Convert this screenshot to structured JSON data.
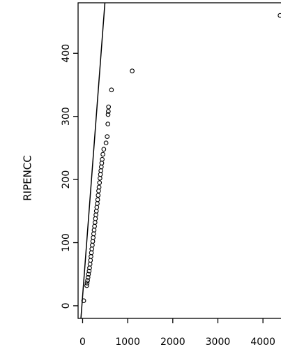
{
  "chart_data": {
    "type": "scatter",
    "title": "",
    "xlabel": "",
    "ylabel": "RIPENCC",
    "xlim": [
      -100,
      4400
    ],
    "ylim": [
      -20,
      480
    ],
    "x_ticks": [
      0,
      1000,
      2000,
      3000,
      4000
    ],
    "y_ticks": [
      0,
      100,
      200,
      300,
      400
    ],
    "x_tick_labels": [
      "0",
      "1000",
      "2000",
      "3000",
      "4000"
    ],
    "y_tick_labels": [
      "0",
      "100",
      "200",
      "300",
      "400"
    ],
    "grid": false,
    "legend": "none",
    "colors": {
      "points": "#000000",
      "line": "#000000",
      "axes": "#000000"
    },
    "reference_line": {
      "slope": 0.94,
      "intercept": 15
    },
    "points": [
      [
        25,
        8
      ],
      [
        92,
        32
      ],
      [
        100,
        36
      ],
      [
        110,
        40
      ],
      [
        120,
        45
      ],
      [
        130,
        50
      ],
      [
        145,
        55
      ],
      [
        155,
        60
      ],
      [
        165,
        66
      ],
      [
        175,
        72
      ],
      [
        185,
        78
      ],
      [
        195,
        84
      ],
      [
        205,
        90
      ],
      [
        215,
        96
      ],
      [
        225,
        102
      ],
      [
        235,
        108
      ],
      [
        245,
        114
      ],
      [
        255,
        120
      ],
      [
        265,
        126
      ],
      [
        275,
        132
      ],
      [
        285,
        138
      ],
      [
        295,
        144
      ],
      [
        305,
        150
      ],
      [
        315,
        156
      ],
      [
        325,
        162
      ],
      [
        335,
        168
      ],
      [
        345,
        175
      ],
      [
        355,
        182
      ],
      [
        365,
        188
      ],
      [
        375,
        195
      ],
      [
        385,
        202
      ],
      [
        395,
        208
      ],
      [
        405,
        214
      ],
      [
        415,
        220
      ],
      [
        425,
        226
      ],
      [
        435,
        232
      ],
      [
        450,
        240
      ],
      [
        470,
        248
      ],
      [
        520,
        258
      ],
      [
        545,
        268
      ],
      [
        560,
        288
      ],
      [
        565,
        303
      ],
      [
        570,
        308
      ],
      [
        575,
        315
      ],
      [
        640,
        342
      ],
      [
        1100,
        372
      ],
      [
        4380,
        460
      ]
    ]
  }
}
